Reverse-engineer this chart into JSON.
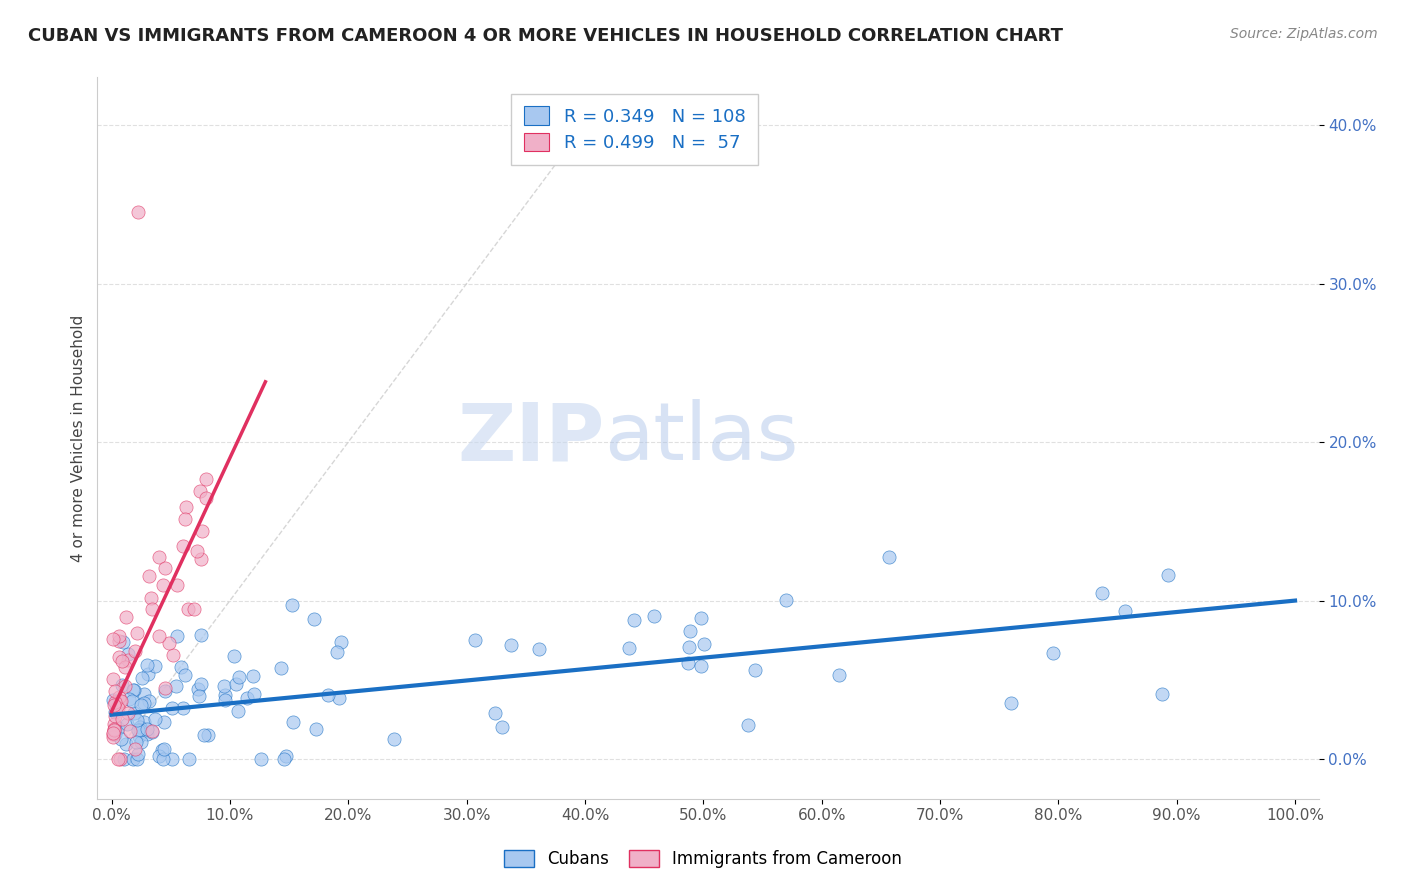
{
  "title": "CUBAN VS IMMIGRANTS FROM CAMEROON 4 OR MORE VEHICLES IN HOUSEHOLD CORRELATION CHART",
  "source_text": "Source: ZipAtlas.com",
  "ylabel": "4 or more Vehicles in Household",
  "R_cubans": 0.349,
  "N_cubans": 108,
  "R_cameroon": 0.499,
  "N_cameroon": 57,
  "cubans_color": "#a8c8f0",
  "cameroon_color": "#f0b0c8",
  "cubans_line_color": "#1a6fc4",
  "cameroon_line_color": "#e03060",
  "title_color": "#222222",
  "watermark_zip": "ZIP",
  "watermark_atlas": "atlas",
  "watermark_color_zip": "#c8d8f0",
  "watermark_color_atlas": "#a0b8d8",
  "background_color": "#ffffff",
  "grid_color": "#dddddd",
  "legend_cubans_label": "Cubans",
  "legend_cameroon_label": "Immigrants from Cameroon",
  "ytick_color": "#4472c4",
  "xtick_color": "#555555"
}
